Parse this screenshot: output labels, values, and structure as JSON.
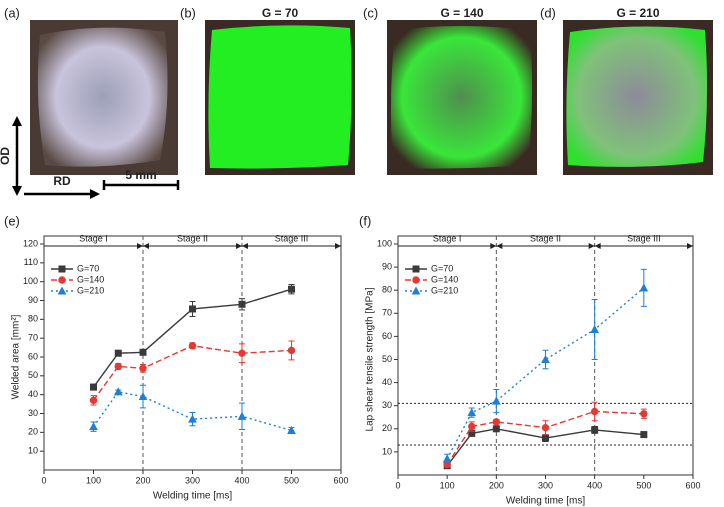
{
  "panels": [
    {
      "label": "(a)"
    },
    {
      "label": "(b)",
      "title": "G = 70"
    },
    {
      "label": "(c)",
      "title": "G = 140"
    },
    {
      "label": "(d)",
      "title": "G = 210"
    }
  ],
  "scale": {
    "od": "OD",
    "rd": "RD",
    "bar": "5 mm"
  },
  "chart_data": [
    {
      "type": "line",
      "panel": "(e)",
      "x_label": "Welding time [ms]",
      "y_label": "Welded area [mm²]",
      "x": [
        100,
        150,
        200,
        300,
        400,
        500
      ],
      "series": [
        {
          "name": "G=70",
          "color": "#3a3a3a",
          "line_style": "solid",
          "marker": "square",
          "values": [
            44,
            62,
            62.5,
            85.5,
            88,
            96
          ],
          "errors": [
            1.5,
            1.5,
            1,
            4,
            3,
            2.5
          ]
        },
        {
          "name": "G=140",
          "color": "#e53935",
          "line_style": "dashed",
          "marker": "circle",
          "values": [
            37,
            55,
            54,
            66,
            62,
            63.5
          ],
          "errors": [
            2.5,
            1.5,
            2,
            1.5,
            5,
            5
          ]
        },
        {
          "name": "G=210",
          "color": "#1e7fd6",
          "line_style": "dotted",
          "marker": "triangle",
          "values": [
            23,
            41.5,
            39,
            27,
            28.5,
            21
          ],
          "errors": [
            2.5,
            1,
            6,
            3.5,
            7,
            1.5
          ]
        }
      ],
      "xlim": [
        0,
        600
      ],
      "xticks": [
        0,
        100,
        200,
        300,
        400,
        500,
        600
      ],
      "ylim": [
        0,
        120
      ],
      "yticks": [
        10,
        20,
        30,
        40,
        50,
        60,
        70,
        80,
        90,
        100,
        110,
        120
      ],
      "vlines": [
        200,
        400
      ],
      "hlines": [],
      "stages": [
        {
          "label": "Stage I",
          "range": [
            0,
            200
          ]
        },
        {
          "label": "Stage II",
          "range": [
            200,
            400
          ]
        },
        {
          "label": "Stage III",
          "range": [
            400,
            600
          ]
        }
      ],
      "legend": "upper left"
    },
    {
      "type": "line",
      "panel": "(f)",
      "x_label": "Welding time [ms]",
      "y_label": "Lap shear tensile strength [MPa]",
      "x": [
        100,
        150,
        200,
        300,
        400,
        500
      ],
      "series": [
        {
          "name": "G=70",
          "color": "#3a3a3a",
          "line_style": "solid",
          "marker": "square",
          "values": [
            4,
            18,
            20,
            16,
            19.5,
            17.5
          ],
          "errors": [
            1,
            1,
            1,
            1.5,
            1.5,
            0.5
          ]
        },
        {
          "name": "G=140",
          "color": "#e53935",
          "line_style": "dashed",
          "marker": "circle",
          "values": [
            4.5,
            21,
            23,
            20.5,
            27.5,
            26.5
          ],
          "errors": [
            1,
            2,
            1,
            3,
            4,
            2
          ]
        },
        {
          "name": "G=210",
          "color": "#1e7fd6",
          "line_style": "dotted",
          "marker": "triangle",
          "values": [
            7,
            27,
            32,
            50,
            63,
            81
          ],
          "errors": [
            2,
            2,
            5,
            4,
            13,
            8
          ]
        }
      ],
      "xlim": [
        0,
        600
      ],
      "xticks": [
        0,
        100,
        200,
        300,
        400,
        500,
        600
      ],
      "ylim": [
        0,
        100
      ],
      "yticks": [
        10,
        20,
        30,
        40,
        50,
        60,
        70,
        80,
        90,
        100
      ],
      "vlines": [
        200,
        400
      ],
      "hlines": [
        31,
        13
      ],
      "stages": [
        {
          "label": "Stage I",
          "range": [
            0,
            200
          ]
        },
        {
          "label": "Stage II",
          "range": [
            200,
            400
          ]
        },
        {
          "label": "Stage III",
          "range": [
            400,
            600
          ]
        }
      ],
      "legend": "upper left"
    }
  ]
}
